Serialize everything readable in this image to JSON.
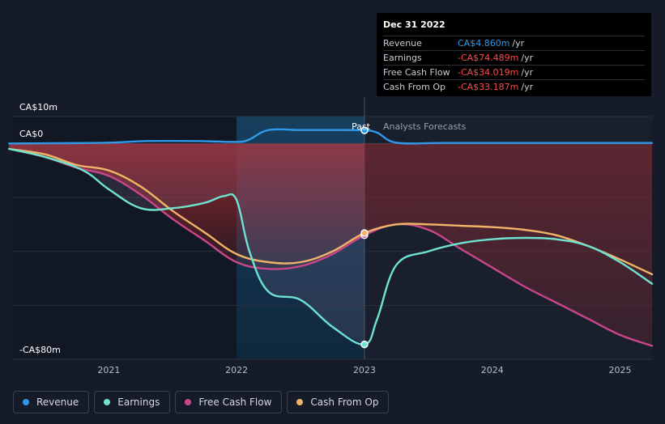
{
  "tooltip": {
    "date": "Dec 31 2022",
    "rows": [
      {
        "label": "Revenue",
        "value": "CA$4.860m",
        "unit": "/yr",
        "color": "#2f9ae9"
      },
      {
        "label": "Earnings",
        "value": "-CA$74.489m",
        "unit": "/yr",
        "color": "#ff4b4b"
      },
      {
        "label": "Free Cash Flow",
        "value": "-CA$34.019m",
        "unit": "/yr",
        "color": "#ff4b4b"
      },
      {
        "label": "Cash From Op",
        "value": "-CA$33.187m",
        "unit": "/yr",
        "color": "#ff4b4b"
      }
    ]
  },
  "labels": {
    "past": "Past",
    "forecast": "Analysts Forecasts"
  },
  "legend": [
    {
      "name": "Revenue",
      "color": "#2f9ae9"
    },
    {
      "name": "Earnings",
      "color": "#6fe3d1"
    },
    {
      "name": "Free Cash Flow",
      "color": "#c8468a"
    },
    {
      "name": "Cash From Op",
      "color": "#f0b468"
    }
  ],
  "chart_data": {
    "type": "line",
    "y_unit": "CA$m",
    "y_tick_labels": [
      "CA$10m",
      "CA$0",
      "-CA$80m"
    ],
    "y_ticks": [
      10,
      0,
      -80
    ],
    "ylim": [
      -80,
      10
    ],
    "xlim": [
      2020.25,
      2025.25
    ],
    "x_tick_labels": [
      "2021",
      "2022",
      "2023",
      "2024",
      "2025"
    ],
    "x_ticks": [
      2021,
      2022,
      2023,
      2024,
      2025
    ],
    "past_end": 2023,
    "grid": true,
    "legend_position": "bottom-left",
    "series": [
      {
        "name": "Revenue",
        "color": "#2f9ae9",
        "x": [
          2020.22,
          2020.6,
          2021.0,
          2021.3,
          2021.7,
          2022.0,
          2022.1,
          2022.25,
          2022.5,
          2022.8,
          2023.0,
          2023.1,
          2023.25,
          2023.6,
          2024.0,
          2024.5,
          2025.0,
          2025.25
        ],
        "y": [
          0.0,
          0.1,
          0.3,
          0.9,
          0.9,
          0.6,
          1.5,
          5.0,
          5.0,
          5.0,
          4.86,
          4.0,
          0.3,
          0.2,
          0.2,
          0.2,
          0.2,
          0.2
        ]
      },
      {
        "name": "Earnings",
        "color": "#6fe3d1",
        "x": [
          2020.22,
          2020.5,
          2020.8,
          2021.0,
          2021.25,
          2021.5,
          2021.75,
          2021.9,
          2022.0,
          2022.1,
          2022.25,
          2022.5,
          2022.75,
          2023.0,
          2023.1,
          2023.25,
          2023.5,
          2023.75,
          2024.0,
          2024.25,
          2024.5,
          2024.75,
          2025.0,
          2025.25
        ],
        "y": [
          -2,
          -5,
          -10,
          -17,
          -24,
          -24,
          -22,
          -19.5,
          -21,
          -40,
          -55,
          -58,
          -68,
          -74.49,
          -65,
          -45,
          -40,
          -37,
          -35.5,
          -35,
          -35.5,
          -38,
          -44,
          -52
        ]
      },
      {
        "name": "Free Cash Flow",
        "color": "#c8468a",
        "x": [
          2020.22,
          2020.5,
          2020.75,
          2021.0,
          2021.25,
          2021.5,
          2021.75,
          2022.0,
          2022.25,
          2022.5,
          2022.75,
          2023.0,
          2023.25,
          2023.5,
          2023.75,
          2024.0,
          2024.25,
          2024.5,
          2024.75,
          2025.0,
          2025.25
        ],
        "y": [
          -2,
          -5,
          -9,
          -12,
          -19,
          -28,
          -36,
          -44,
          -46.5,
          -45.5,
          -41,
          -34.02,
          -30,
          -32,
          -39,
          -46,
          -53,
          -59,
          -65,
          -71,
          -75
        ]
      },
      {
        "name": "Cash From Op",
        "color": "#f0b468",
        "x": [
          2020.22,
          2020.5,
          2020.75,
          2021.0,
          2021.25,
          2021.5,
          2021.75,
          2022.0,
          2022.25,
          2022.5,
          2022.75,
          2023.0,
          2023.25,
          2023.5,
          2023.75,
          2024.0,
          2024.25,
          2024.5,
          2024.75,
          2025.0,
          2025.25
        ],
        "y": [
          -2,
          -4,
          -8,
          -10,
          -16,
          -25,
          -33,
          -41,
          -44,
          -44,
          -40,
          -33.19,
          -30,
          -30,
          -30.5,
          -31,
          -32,
          -34,
          -38,
          -43,
          -48.5
        ]
      }
    ]
  }
}
